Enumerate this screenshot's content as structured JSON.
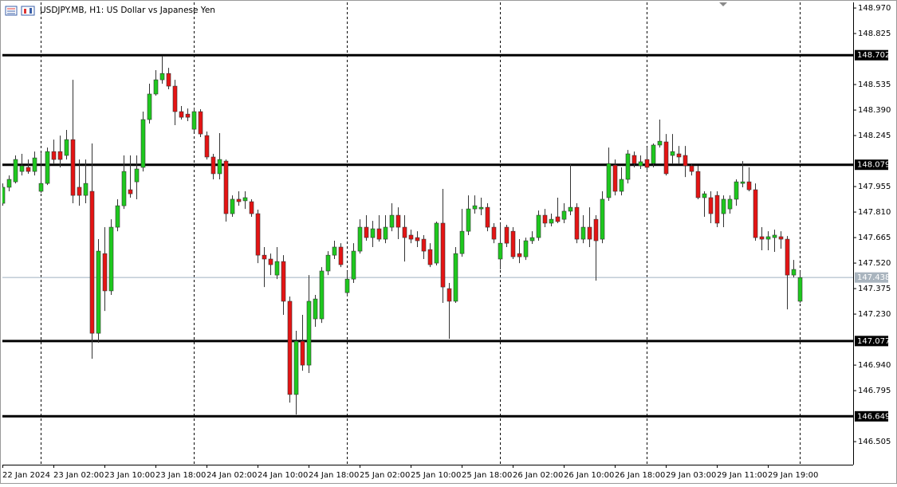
{
  "chart_data": {
    "type": "candlestick",
    "title": "USDJPY.MB, H1:  US Dollar vs Japanese Yen",
    "categories": [
      "22 Jan 2024",
      null,
      null,
      null,
      null,
      null,
      null,
      null,
      "23 Jan 02:00",
      null,
      null,
      null,
      null,
      null,
      null,
      null,
      "23 Jan 10:00",
      null,
      null,
      null,
      null,
      null,
      null,
      null,
      "23 Jan 18:00",
      null,
      null,
      null,
      null,
      null,
      null,
      null,
      "24 Jan 02:00",
      null,
      null,
      null,
      null,
      null,
      null,
      null,
      "24 Jan 10:00",
      null,
      null,
      null,
      null,
      null,
      null,
      null,
      "24 Jan 18:00",
      null,
      null,
      null,
      null,
      null,
      null,
      null,
      "25 Jan 02:00",
      null,
      null,
      null,
      null,
      null,
      null,
      null,
      "25 Jan 10:00",
      null,
      null,
      null,
      null,
      null,
      null,
      null,
      "25 Jan 18:00",
      null,
      null,
      null,
      null,
      null,
      null,
      null,
      "26 Jan 02:00",
      null,
      null,
      null,
      null,
      null,
      null,
      null,
      "26 Jan 10:00",
      null,
      null,
      null,
      null,
      null,
      null,
      null,
      "26 Jan 18:00",
      null,
      null,
      null,
      null,
      null,
      null,
      null,
      "29 Jan 03:00",
      null,
      null,
      null,
      null,
      null,
      null,
      null,
      "29 Jan 11:00",
      null,
      null,
      null,
      null,
      null,
      null,
      null,
      "29 Jan 19:00",
      null,
      null,
      null,
      null,
      null
    ],
    "open": [
      147.86,
      147.951,
      147.982,
      148.041,
      148.064,
      148.041,
      147.928,
      147.973,
      148.154,
      148.154,
      148.132,
      148.222,
      147.951,
      147.905,
      147.928,
      147.121,
      147.574,
      147.362,
      147.724,
      147.846,
      147.937,
      147.982,
      148.064,
      148.336,
      148.481,
      148.562,
      148.598,
      148.526,
      148.381,
      148.367,
      148.281,
      148.381,
      148.245,
      148.123,
      148.028,
      148.1,
      147.801,
      147.883,
      147.874,
      147.869,
      147.801,
      147.565,
      147.543,
      147.452,
      147.529,
      147.303,
      146.773,
      147.076,
      146.94,
      147.203,
      147.203,
      147.475,
      147.565,
      147.611,
      147.352,
      147.429,
      147.588,
      147.724,
      147.665,
      147.715,
      147.656,
      147.724,
      147.792,
      147.724,
      147.679,
      147.665,
      147.656,
      147.597,
      147.52,
      147.747,
      147.375,
      147.303,
      147.574,
      147.701,
      147.828,
      147.828,
      147.837,
      147.724,
      147.543,
      147.724,
      147.701,
      147.574,
      147.556,
      147.647,
      147.665,
      147.792,
      147.747,
      147.783,
      147.769,
      147.815,
      147.837,
      147.656,
      147.724,
      147.769,
      147.656,
      147.892,
      148.077,
      147.928,
      147.996,
      148.132,
      148.073,
      148.109,
      148.086,
      148.191,
      148.209,
      148.132,
      148.141,
      148.132,
      148.073,
      148.041,
      147.892,
      147.892,
      147.905,
      147.801,
      147.828,
      147.883,
      147.973,
      147.982,
      147.937,
      147.67,
      147.656,
      147.665,
      147.67,
      147.656,
      147.452,
      147.303
    ],
    "high": [
      147.973,
      148.018,
      148.132,
      148.141,
      148.109,
      148.154,
      148.145,
      148.177,
      148.222,
      148.245,
      148.277,
      148.562,
      148.109,
      148.109,
      148.2,
      147.656,
      147.724,
      147.769,
      147.883,
      148.132,
      148.132,
      148.132,
      148.381,
      148.54,
      148.617,
      148.698,
      148.63,
      148.562,
      148.413,
      148.399,
      148.404,
      148.395,
      148.268,
      148.141,
      148.259,
      148.109,
      147.905,
      147.928,
      147.928,
      147.883,
      147.824,
      147.611,
      147.574,
      147.611,
      147.565,
      147.33,
      147.135,
      147.226,
      147.452,
      147.339,
      147.497,
      147.588,
      147.647,
      147.633,
      147.475,
      147.633,
      147.769,
      147.792,
      147.76,
      147.792,
      147.792,
      147.86,
      147.837,
      147.792,
      147.71,
      147.701,
      147.679,
      147.633,
      147.756,
      147.942,
      147.407,
      147.611,
      147.828,
      147.905,
      147.905,
      147.892,
      147.86,
      147.747,
      147.747,
      147.738,
      147.724,
      147.656,
      147.665,
      147.701,
      147.819,
      147.828,
      147.801,
      147.892,
      147.86,
      148.086,
      147.86,
      147.792,
      147.837,
      147.792,
      147.928,
      148.177,
      148.109,
      148.064,
      148.163,
      148.154,
      148.132,
      148.177,
      148.2,
      148.336,
      148.254,
      148.254,
      148.186,
      148.186,
      148.086,
      148.073,
      147.928,
      147.928,
      147.928,
      147.905,
      147.905,
      147.996,
      148.1,
      148.064,
      147.973,
      147.724,
      147.701,
      147.71,
      147.701,
      147.674,
      147.538,
      147.475
    ],
    "low": [
      147.846,
      147.928,
      147.973,
      148.018,
      148.028,
      148.018,
      147.919,
      147.964,
      148.086,
      148.064,
      148.109,
      147.86,
      147.846,
      147.86,
      146.976,
      147.067,
      147.248,
      147.339,
      147.701,
      147.828,
      147.892,
      147.883,
      148.041,
      148.313,
      148.472,
      148.54,
      148.508,
      148.304,
      148.336,
      148.327,
      148.268,
      148.236,
      148.109,
      147.996,
      147.996,
      147.756,
      147.783,
      147.846,
      147.828,
      147.783,
      147.52,
      147.384,
      147.452,
      147.429,
      147.226,
      146.727,
      146.659,
      146.908,
      146.895,
      147.158,
      147.18,
      147.452,
      147.543,
      147.497,
      147.33,
      147.407,
      147.574,
      147.647,
      147.611,
      147.642,
      147.633,
      147.701,
      147.656,
      147.529,
      147.633,
      147.611,
      147.543,
      147.497,
      147.507,
      147.294,
      147.09,
      147.294,
      147.556,
      147.679,
      147.801,
      147.792,
      147.701,
      147.633,
      147.484,
      147.611,
      147.543,
      147.52,
      147.538,
      147.629,
      147.647,
      147.724,
      147.729,
      147.747,
      147.747,
      147.792,
      147.633,
      147.633,
      147.611,
      147.42,
      147.633,
      147.874,
      147.905,
      147.905,
      147.973,
      148.064,
      148.055,
      148.041,
      148.064,
      148.177,
      148.018,
      148.086,
      148.086,
      148.009,
      148.018,
      147.883,
      147.783,
      147.747,
      147.724,
      147.724,
      147.801,
      147.846,
      147.951,
      147.928,
      147.647,
      147.593,
      147.593,
      147.584,
      147.602,
      147.257,
      147.439,
      147.294
    ],
    "close": [
      147.951,
      147.996,
      148.109,
      148.073,
      148.041,
      148.118,
      147.973,
      148.154,
      148.109,
      148.109,
      148.222,
      147.905,
      147.905,
      147.973,
      147.121,
      147.588,
      147.362,
      147.724,
      147.846,
      148.041,
      147.914,
      148.055,
      148.336,
      148.481,
      148.562,
      148.598,
      148.526,
      148.381,
      148.349,
      148.349,
      148.381,
      148.254,
      148.123,
      148.028,
      148.109,
      147.801,
      147.883,
      147.869,
      147.892,
      147.801,
      147.565,
      147.543,
      147.511,
      147.529,
      147.303,
      146.773,
      147.076,
      146.94,
      147.303,
      147.316,
      147.475,
      147.565,
      147.611,
      147.511,
      147.429,
      147.588,
      147.724,
      147.665,
      147.715,
      147.656,
      147.724,
      147.792,
      147.724,
      147.665,
      147.656,
      147.647,
      147.588,
      147.511,
      147.747,
      147.384,
      147.303,
      147.574,
      147.701,
      147.828,
      147.846,
      147.837,
      147.724,
      147.656,
      147.633,
      147.633,
      147.556,
      147.556,
      147.647,
      147.665,
      147.792,
      147.747,
      147.769,
      147.756,
      147.815,
      147.837,
      147.656,
      147.724,
      147.656,
      147.647,
      147.883,
      148.086,
      147.928,
      147.996,
      148.141,
      148.086,
      148.096,
      148.064,
      148.191,
      148.213,
      148.028,
      148.154,
      148.123,
      148.073,
      148.041,
      147.892,
      147.914,
      147.801,
      147.747,
      147.883,
      147.883,
      147.982,
      147.982,
      147.937,
      147.665,
      147.656,
      147.67,
      147.679,
      147.656,
      147.452,
      147.484,
      147.438
    ],
    "bull_color": "#1ec81e",
    "bear_color": "#e41414",
    "levels": [
      148.702,
      148.079,
      147.077,
      146.649
    ],
    "current_price": 147.438,
    "ylim": [
      146.374,
      149.002
    ],
    "yticks": [
      {
        "value": 148.97,
        "label": "148.970"
      },
      148.825,
      148.535,
      {
        "value": 148.39,
        "label": "148.390"
      },
      148.245,
      147.955,
      {
        "value": 147.81,
        "label": "147.810"
      },
      147.665,
      {
        "value": 147.52,
        "label": "147.520"
      },
      147.375,
      {
        "value": 147.23,
        "label": "147.230"
      },
      {
        "value": 146.94,
        "label": "146.940"
      },
      146.795,
      146.505
    ]
  }
}
